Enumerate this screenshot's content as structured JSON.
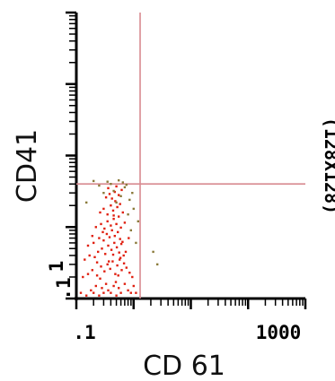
{
  "chart_data": {
    "type": "scatter",
    "title": "",
    "xlabel": "CD 61",
    "ylabel": "CD41",
    "x_scale": "log",
    "y_scale": "log",
    "xlim": [
      0.1,
      1000
    ],
    "ylim": [
      0.1,
      1000
    ],
    "x_tick_labels": [
      ".1",
      "1000"
    ],
    "y_tick_labels": [
      ".1",
      "1"
    ],
    "resolution_label": "(128X128)",
    "quadrant_gate": {
      "x": 1.3,
      "y": 4
    },
    "grid": false,
    "legend": "none",
    "colors": {
      "axis": "#000000",
      "quadrant": "#d88a90",
      "dots_primary": "#e02010",
      "dots_secondary": "#8a7a3a"
    },
    "series": [
      {
        "points": [
          [
            0.12,
            0.12
          ],
          [
            0.15,
            0.11
          ],
          [
            0.18,
            0.13
          ],
          [
            0.2,
            0.12
          ],
          [
            0.22,
            0.15
          ],
          [
            0.25,
            0.11
          ],
          [
            0.28,
            0.14
          ],
          [
            0.3,
            0.12
          ],
          [
            0.33,
            0.16
          ],
          [
            0.36,
            0.13
          ],
          [
            0.4,
            0.12
          ],
          [
            0.45,
            0.15
          ],
          [
            0.5,
            0.11
          ],
          [
            0.55,
            0.14
          ],
          [
            0.6,
            0.12
          ],
          [
            0.7,
            0.16
          ],
          [
            0.8,
            0.13
          ],
          [
            0.9,
            0.12
          ],
          [
            1.0,
            0.15
          ],
          [
            1.1,
            0.12
          ],
          [
            0.13,
            0.2
          ],
          [
            0.16,
            0.22
          ],
          [
            0.19,
            0.25
          ],
          [
            0.23,
            0.21
          ],
          [
            0.27,
            0.28
          ],
          [
            0.31,
            0.24
          ],
          [
            0.35,
            0.3
          ],
          [
            0.39,
            0.26
          ],
          [
            0.43,
            0.33
          ],
          [
            0.48,
            0.22
          ],
          [
            0.52,
            0.29
          ],
          [
            0.57,
            0.35
          ],
          [
            0.62,
            0.25
          ],
          [
            0.68,
            0.31
          ],
          [
            0.75,
            0.27
          ],
          [
            0.85,
            0.23
          ],
          [
            0.95,
            0.2
          ],
          [
            0.14,
            0.35
          ],
          [
            0.17,
            0.4
          ],
          [
            0.21,
            0.38
          ],
          [
            0.24,
            0.45
          ],
          [
            0.28,
            0.5
          ],
          [
            0.32,
            0.42
          ],
          [
            0.36,
            0.55
          ],
          [
            0.41,
            0.48
          ],
          [
            0.46,
            0.6
          ],
          [
            0.51,
            0.52
          ],
          [
            0.56,
            0.44
          ],
          [
            0.61,
            0.58
          ],
          [
            0.67,
            0.4
          ],
          [
            0.2,
            0.6
          ],
          [
            0.25,
            0.7
          ],
          [
            0.3,
            0.65
          ],
          [
            0.34,
            0.8
          ],
          [
            0.38,
            0.72
          ],
          [
            0.42,
            0.9
          ],
          [
            0.47,
            0.75
          ],
          [
            0.53,
            0.85
          ],
          [
            0.58,
            0.68
          ],
          [
            0.64,
            0.62
          ],
          [
            0.22,
            1.0
          ],
          [
            0.27,
            1.1
          ],
          [
            0.31,
            0.95
          ],
          [
            0.35,
            1.2
          ],
          [
            0.4,
            1.05
          ],
          [
            0.45,
            1.3
          ],
          [
            0.5,
            1.1
          ],
          [
            0.55,
            1.4
          ],
          [
            0.6,
            0.98
          ],
          [
            0.7,
            1.15
          ],
          [
            0.26,
            1.6
          ],
          [
            0.3,
            1.8
          ],
          [
            0.35,
            1.5
          ],
          [
            0.4,
            2.0
          ],
          [
            0.44,
            1.7
          ],
          [
            0.48,
            2.3
          ],
          [
            0.52,
            1.9
          ],
          [
            0.58,
            2.1
          ],
          [
            0.65,
            1.6
          ],
          [
            0.33,
            2.6
          ],
          [
            0.38,
            2.9
          ],
          [
            0.42,
            2.5
          ],
          [
            0.47,
            3.1
          ],
          [
            0.55,
            2.8
          ],
          [
            0.62,
            3.3
          ],
          [
            0.36,
            3.5
          ],
          [
            0.5,
            3.7
          ],
          [
            0.45,
            1.45
          ],
          [
            0.29,
            0.85
          ],
          [
            0.37,
            0.33
          ],
          [
            0.16,
            0.55
          ],
          [
            0.19,
            0.75
          ],
          [
            0.23,
            0.32
          ],
          [
            0.26,
            0.19
          ],
          [
            0.44,
            0.41
          ],
          [
            0.49,
            0.17
          ],
          [
            0.54,
            0.21
          ],
          [
            0.59,
            0.37
          ],
          [
            0.73,
            0.45
          ],
          [
            0.82,
            0.7
          ]
        ]
      },
      {
        "points": [
          [
            0.25,
            3.8
          ],
          [
            0.35,
            4.3
          ],
          [
            0.45,
            3.2
          ],
          [
            0.55,
            4.5
          ],
          [
            0.7,
            3.6
          ],
          [
            0.85,
            2.4
          ],
          [
            1.0,
            1.8
          ],
          [
            0.15,
            2.2
          ],
          [
            0.6,
            2.7
          ],
          [
            0.8,
            1.5
          ],
          [
            0.4,
            4.0
          ],
          [
            0.3,
            3.0
          ],
          [
            1.1,
            0.6
          ],
          [
            0.9,
            0.9
          ],
          [
            0.2,
            4.4
          ],
          [
            0.75,
            3.9
          ],
          [
            0.5,
            2.2
          ],
          [
            0.65,
            4.2
          ],
          [
            1.2,
            1.2
          ],
          [
            0.95,
            3.0
          ]
        ]
      },
      {
        "points": [
          [
            2.2,
            0.45
          ],
          [
            2.6,
            0.3
          ]
        ]
      }
    ]
  }
}
